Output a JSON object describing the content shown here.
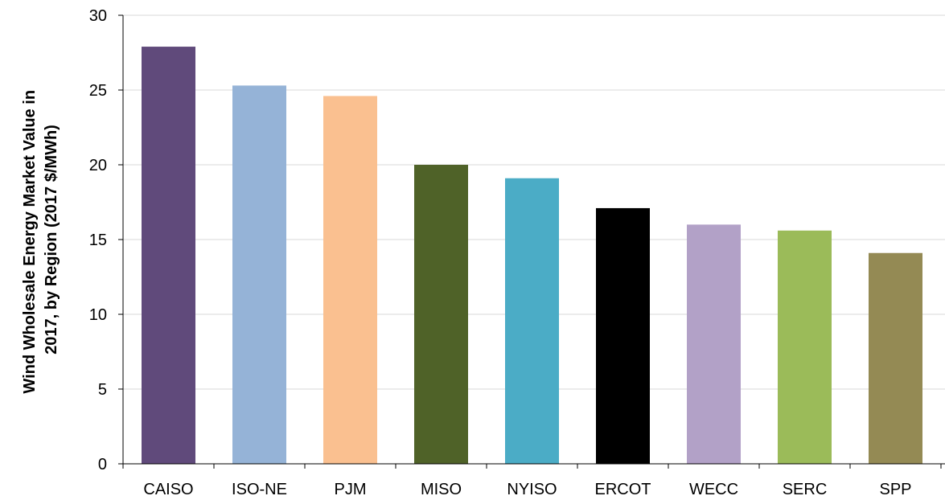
{
  "chart_data": {
    "type": "bar",
    "title": "",
    "xlabel": "",
    "ylabel_lines": [
      "Wind Wholesale Energy Market Value in",
      "2017, by Region (2017 $/MWh)"
    ],
    "categories": [
      "CAISO",
      "ISO-NE",
      "PJM",
      "MISO",
      "NYISO",
      "ERCOT",
      "WECC",
      "SERC",
      "SPP"
    ],
    "values": [
      27.9,
      25.3,
      24.6,
      20.0,
      19.1,
      17.1,
      16.0,
      15.6,
      14.1
    ],
    "colors": [
      "#604a7b",
      "#95b3d7",
      "#fac090",
      "#4f6228",
      "#4bacc6",
      "#000000",
      "#b2a1c7",
      "#9bbb59",
      "#948a54"
    ],
    "ylim": [
      0,
      30
    ],
    "yticks": [
      0,
      5,
      10,
      15,
      20,
      25,
      30
    ],
    "grid": true,
    "grid_color": "#d9d9d9",
    "legend": "none"
  }
}
